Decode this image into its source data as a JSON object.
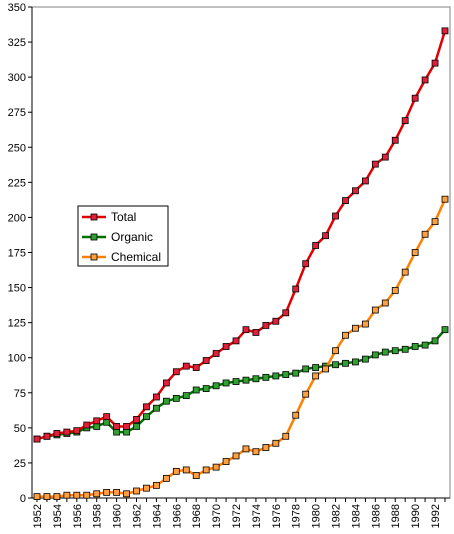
{
  "chart_data": {
    "type": "line",
    "title": "",
    "xlabel": "",
    "ylabel": "",
    "xlim": [
      1952,
      1993
    ],
    "ylim": [
      0,
      350
    ],
    "y_ticks": [
      0,
      25,
      50,
      75,
      100,
      125,
      150,
      175,
      200,
      225,
      250,
      275,
      300,
      325,
      350
    ],
    "x_ticks": [
      1952,
      1954,
      1956,
      1958,
      1960,
      1962,
      1964,
      1966,
      1968,
      1970,
      1972,
      1974,
      1976,
      1978,
      1980,
      1982,
      1984,
      1986,
      1988,
      1990,
      1992
    ],
    "x": [
      1952,
      1953,
      1954,
      1955,
      1956,
      1957,
      1958,
      1959,
      1960,
      1961,
      1962,
      1963,
      1964,
      1965,
      1966,
      1967,
      1968,
      1969,
      1970,
      1971,
      1972,
      1973,
      1974,
      1975,
      1976,
      1977,
      1978,
      1979,
      1980,
      1981,
      1982,
      1983,
      1984,
      1985,
      1986,
      1987,
      1988,
      1989,
      1990,
      1991,
      1992,
      1993
    ],
    "grid": false,
    "legend_position": "left-middle",
    "series": [
      {
        "name": "Total",
        "color": "#e00000",
        "marker_fill": "#e0203a",
        "values": [
          42,
          44,
          46,
          47,
          48,
          52,
          55,
          58,
          51,
          51,
          56,
          65,
          72,
          82,
          90,
          94,
          93,
          98,
          103,
          108,
          112,
          120,
          118,
          123,
          126,
          132,
          149,
          167,
          180,
          187,
          201,
          212,
          219,
          226,
          238,
          243,
          255,
          269,
          285,
          298,
          310,
          333
        ]
      },
      {
        "name": "Organic",
        "color": "#007000",
        "marker_fill": "#30a030",
        "values": [
          42,
          44,
          45,
          46,
          47,
          50,
          51,
          54,
          47,
          47,
          51,
          58,
          64,
          69,
          71,
          73,
          77,
          78,
          80,
          82,
          83,
          84,
          85,
          86,
          87,
          88,
          89,
          92,
          93,
          94,
          95,
          96,
          97,
          99,
          102,
          104,
          105,
          106,
          108,
          109,
          112,
          120
        ]
      },
      {
        "name": "Chemical",
        "color": "#ff8000",
        "marker_fill": "#ffa040",
        "values": [
          1,
          1,
          1,
          2,
          2,
          2,
          3,
          4,
          4,
          3,
          5,
          7,
          9,
          14,
          19,
          20,
          16,
          20,
          22,
          26,
          30,
          35,
          33,
          36,
          39,
          44,
          59,
          74,
          87,
          92,
          105,
          116,
          121,
          124,
          134,
          139,
          148,
          161,
          175,
          188,
          197,
          213
        ]
      }
    ]
  }
}
